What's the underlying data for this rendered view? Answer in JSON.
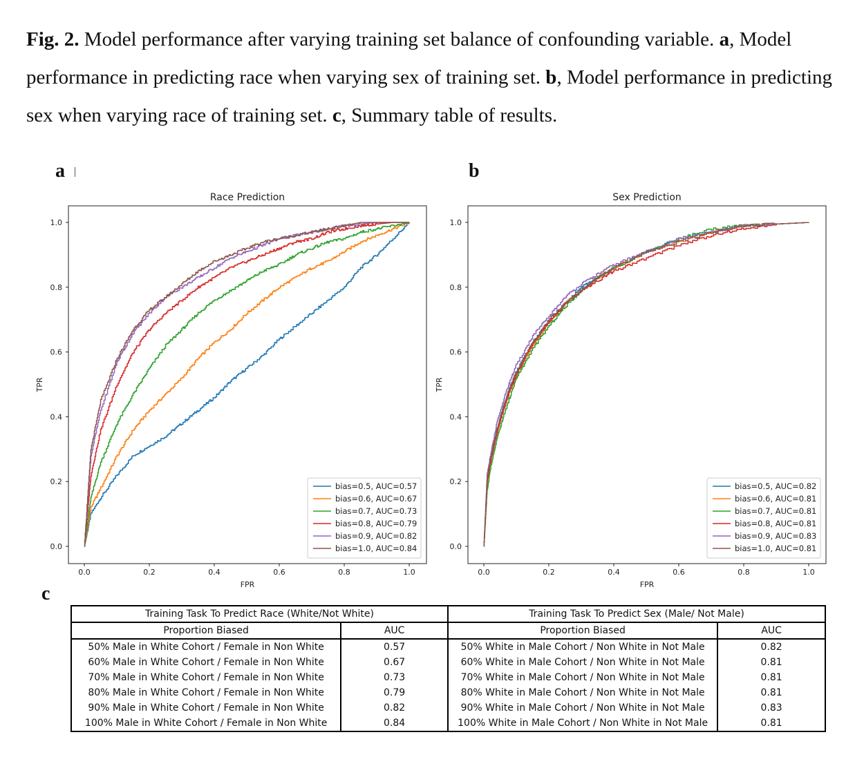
{
  "caption": {
    "fig_label": "Fig. 2.",
    "lead": " Model performance after varying training set balance of confounding variable. ",
    "a_label": "a",
    "a_text": ", Model performance in predicting race when varying sex of training set. ",
    "b_label": "b",
    "b_text": ", Model performance in predicting sex when varying race of training set. ",
    "c_label": "c",
    "c_text": ", Summary table of results."
  },
  "panels": {
    "a": "a",
    "b": "b",
    "c": "c"
  },
  "colors": [
    "#1f77b4",
    "#ff7f0e",
    "#2ca02c",
    "#d62728",
    "#9467bd",
    "#8c564b"
  ],
  "chart_data": [
    {
      "type": "line",
      "title": "Race Prediction",
      "xlabel": "FPR",
      "ylabel": "TPR",
      "xlim": [
        0,
        1
      ],
      "ylim": [
        0,
        1
      ],
      "xticks": [
        "0.0",
        "0.2",
        "0.4",
        "0.6",
        "0.8",
        "1.0"
      ],
      "yticks": [
        "0.0",
        "0.2",
        "0.4",
        "0.6",
        "0.8",
        "1.0"
      ],
      "legend_position": "lower-right",
      "grid": false,
      "series": [
        {
          "name": "bias=0.5, AUC=0.57",
          "x": [
            0,
            0.02,
            0.05,
            0.1,
            0.15,
            0.2,
            0.25,
            0.3,
            0.35,
            0.4,
            0.45,
            0.5,
            0.55,
            0.6,
            0.65,
            0.7,
            0.75,
            0.8,
            0.85,
            0.9,
            0.95,
            1.0
          ],
          "y": [
            0,
            0.1,
            0.15,
            0.22,
            0.28,
            0.31,
            0.34,
            0.38,
            0.42,
            0.46,
            0.51,
            0.55,
            0.59,
            0.64,
            0.68,
            0.72,
            0.76,
            0.8,
            0.86,
            0.9,
            0.95,
            1.0
          ]
        },
        {
          "name": "bias=0.6, AUC=0.67",
          "x": [
            0,
            0.02,
            0.05,
            0.1,
            0.15,
            0.2,
            0.25,
            0.3,
            0.35,
            0.4,
            0.45,
            0.5,
            0.55,
            0.6,
            0.65,
            0.7,
            0.75,
            0.8,
            0.85,
            0.9,
            0.95,
            1.0
          ],
          "y": [
            0,
            0.12,
            0.18,
            0.28,
            0.36,
            0.42,
            0.47,
            0.52,
            0.58,
            0.63,
            0.67,
            0.72,
            0.76,
            0.8,
            0.83,
            0.86,
            0.88,
            0.91,
            0.94,
            0.96,
            0.98,
            1.0
          ]
        },
        {
          "name": "bias=0.7, AUC=0.73",
          "x": [
            0,
            0.02,
            0.05,
            0.1,
            0.15,
            0.2,
            0.25,
            0.3,
            0.35,
            0.4,
            0.45,
            0.5,
            0.55,
            0.6,
            0.65,
            0.7,
            0.75,
            0.8,
            0.85,
            0.9,
            0.95,
            1.0
          ],
          "y": [
            0,
            0.15,
            0.26,
            0.38,
            0.47,
            0.55,
            0.62,
            0.67,
            0.72,
            0.76,
            0.79,
            0.82,
            0.85,
            0.87,
            0.9,
            0.92,
            0.94,
            0.95,
            0.97,
            0.98,
            0.99,
            1.0
          ]
        },
        {
          "name": "bias=0.8, AUC=0.79",
          "x": [
            0,
            0.02,
            0.05,
            0.1,
            0.15,
            0.2,
            0.25,
            0.3,
            0.35,
            0.4,
            0.45,
            0.5,
            0.55,
            0.6,
            0.65,
            0.7,
            0.75,
            0.8,
            0.85,
            0.9,
            0.95,
            1.0
          ],
          "y": [
            0,
            0.22,
            0.36,
            0.5,
            0.6,
            0.67,
            0.72,
            0.76,
            0.8,
            0.83,
            0.86,
            0.88,
            0.9,
            0.92,
            0.94,
            0.95,
            0.97,
            0.98,
            0.99,
            0.995,
            1.0,
            1.0
          ]
        },
        {
          "name": "bias=0.9, AUC=0.82",
          "x": [
            0,
            0.02,
            0.05,
            0.1,
            0.15,
            0.2,
            0.25,
            0.3,
            0.35,
            0.4,
            0.45,
            0.5,
            0.55,
            0.6,
            0.65,
            0.7,
            0.75,
            0.8,
            0.85,
            0.9,
            0.95,
            1.0
          ],
          "y": [
            0,
            0.28,
            0.42,
            0.57,
            0.66,
            0.72,
            0.77,
            0.8,
            0.83,
            0.86,
            0.89,
            0.91,
            0.93,
            0.95,
            0.96,
            0.97,
            0.98,
            0.99,
            0.995,
            1.0,
            1.0,
            1.0
          ]
        },
        {
          "name": "bias=1.0, AUC=0.84",
          "x": [
            0,
            0.02,
            0.05,
            0.1,
            0.15,
            0.2,
            0.25,
            0.3,
            0.35,
            0.4,
            0.45,
            0.5,
            0.55,
            0.6,
            0.65,
            0.7,
            0.75,
            0.8,
            0.85,
            0.9,
            0.95,
            1.0
          ],
          "y": [
            0,
            0.3,
            0.45,
            0.58,
            0.67,
            0.73,
            0.77,
            0.81,
            0.85,
            0.88,
            0.9,
            0.92,
            0.94,
            0.95,
            0.96,
            0.97,
            0.98,
            0.99,
            1.0,
            1.0,
            1.0,
            1.0
          ]
        }
      ]
    },
    {
      "type": "line",
      "title": "Sex Prediction",
      "xlabel": "FPR",
      "ylabel": "TPR",
      "xlim": [
        0,
        1
      ],
      "ylim": [
        0,
        1
      ],
      "xticks": [
        "0.0",
        "0.2",
        "0.4",
        "0.6",
        "0.8",
        "1.0"
      ],
      "yticks": [
        "0.0",
        "0.2",
        "0.4",
        "0.6",
        "0.8",
        "1.0"
      ],
      "legend_position": "lower-right",
      "grid": false,
      "series": [
        {
          "name": "bias=0.5, AUC=0.82",
          "x": [
            0,
            0.01,
            0.02,
            0.04,
            0.06,
            0.08,
            0.1,
            0.15,
            0.2,
            0.25,
            0.3,
            0.35,
            0.4,
            0.5,
            0.6,
            0.7,
            0.8,
            0.9,
            1.0
          ],
          "y": [
            0,
            0.2,
            0.27,
            0.36,
            0.43,
            0.49,
            0.54,
            0.63,
            0.7,
            0.75,
            0.8,
            0.83,
            0.86,
            0.91,
            0.95,
            0.97,
            0.99,
            0.995,
            1.0
          ]
        },
        {
          "name": "bias=0.6, AUC=0.81",
          "x": [
            0,
            0.01,
            0.02,
            0.04,
            0.06,
            0.08,
            0.1,
            0.15,
            0.2,
            0.25,
            0.3,
            0.35,
            0.4,
            0.5,
            0.6,
            0.7,
            0.8,
            0.9,
            1.0
          ],
          "y": [
            0,
            0.19,
            0.26,
            0.35,
            0.42,
            0.48,
            0.53,
            0.62,
            0.69,
            0.75,
            0.79,
            0.83,
            0.86,
            0.91,
            0.94,
            0.97,
            0.99,
            0.995,
            1.0
          ]
        },
        {
          "name": "bias=0.7, AUC=0.81",
          "x": [
            0,
            0.01,
            0.02,
            0.04,
            0.06,
            0.08,
            0.1,
            0.15,
            0.2,
            0.25,
            0.3,
            0.35,
            0.4,
            0.5,
            0.6,
            0.7,
            0.8,
            0.9,
            1.0
          ],
          "y": [
            0,
            0.17,
            0.24,
            0.33,
            0.4,
            0.46,
            0.52,
            0.61,
            0.68,
            0.74,
            0.79,
            0.83,
            0.86,
            0.91,
            0.95,
            0.98,
            0.99,
            0.995,
            1.0
          ]
        },
        {
          "name": "bias=0.8, AUC=0.81",
          "x": [
            0,
            0.01,
            0.02,
            0.04,
            0.06,
            0.08,
            0.1,
            0.15,
            0.2,
            0.25,
            0.3,
            0.35,
            0.4,
            0.5,
            0.6,
            0.7,
            0.8,
            0.9,
            1.0
          ],
          "y": [
            0,
            0.2,
            0.26,
            0.35,
            0.42,
            0.48,
            0.53,
            0.63,
            0.69,
            0.75,
            0.79,
            0.82,
            0.85,
            0.89,
            0.93,
            0.96,
            0.98,
            0.995,
            1.0
          ]
        },
        {
          "name": "bias=0.9, AUC=0.83",
          "x": [
            0,
            0.01,
            0.02,
            0.04,
            0.06,
            0.08,
            0.1,
            0.15,
            0.2,
            0.25,
            0.3,
            0.35,
            0.4,
            0.5,
            0.6,
            0.7,
            0.8,
            0.9,
            1.0
          ],
          "y": [
            0,
            0.22,
            0.28,
            0.38,
            0.45,
            0.51,
            0.56,
            0.65,
            0.71,
            0.77,
            0.81,
            0.84,
            0.87,
            0.91,
            0.95,
            0.97,
            0.99,
            0.995,
            1.0
          ]
        },
        {
          "name": "bias=1.0, AUC=0.81",
          "x": [
            0,
            0.01,
            0.02,
            0.04,
            0.06,
            0.08,
            0.1,
            0.15,
            0.2,
            0.25,
            0.3,
            0.35,
            0.4,
            0.5,
            0.6,
            0.7,
            0.8,
            0.9,
            1.0
          ],
          "y": [
            0,
            0.21,
            0.27,
            0.36,
            0.43,
            0.49,
            0.54,
            0.63,
            0.7,
            0.75,
            0.79,
            0.83,
            0.86,
            0.91,
            0.94,
            0.97,
            0.99,
            0.995,
            1.0
          ]
        }
      ]
    },
    {
      "type": "table",
      "groups": [
        "Training Task To Predict Race (White/Not White)",
        "Training Task To Predict Sex (Male/ Not Male)"
      ],
      "columns": [
        "Proportion Biased",
        "AUC",
        "Proportion Biased",
        "AUC"
      ],
      "rows": [
        [
          "50% Male in White Cohort / Female in Non White",
          "0.57",
          "50% White in Male Cohort / Non White in Not Male",
          "0.82"
        ],
        [
          "60% Male in White Cohort / Female in Non White",
          "0.67",
          "60% White in Male Cohort / Non White in Not Male",
          "0.81"
        ],
        [
          "70% Male in White Cohort / Female in Non White",
          "0.73",
          "70% White in Male Cohort / Non White in Not Male",
          "0.81"
        ],
        [
          "80% Male in White Cohort / Female in Non White",
          "0.79",
          "80% White in Male Cohort / Non White in Not Male",
          "0.81"
        ],
        [
          "90% Male in White Cohort / Female in Non White",
          "0.82",
          "90% White in Male Cohort / Non White in Not Male",
          "0.83"
        ],
        [
          "100% Male in White Cohort / Female in Non White",
          "0.84",
          "100% White in Male Cohort / Non White in Not Male",
          "0.81"
        ]
      ]
    }
  ]
}
